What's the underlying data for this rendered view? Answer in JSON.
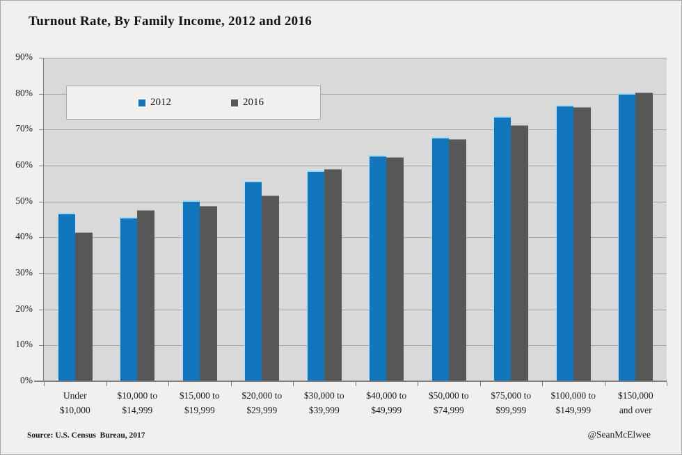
{
  "footer": {
    "source": "Source: U.S. Census  Bureau, 2017",
    "credit": "@SeanMcElwee"
  },
  "chart_data": {
    "type": "bar",
    "title": "Turnout Rate, By Family Income, 2012 and 2016",
    "categories": [
      "Under $10,000",
      "$10,000 to $14,999",
      "$15,000 to $19,999",
      "$20,000 to $29,999",
      "$30,000 to $39,999",
      "$40,000 to $49,999",
      "$50,000 to $74,999",
      "$75,000 to $99,999",
      "$100,000 to $149,999",
      "$150,000 and over"
    ],
    "category_lines": [
      [
        "Under",
        "$10,000"
      ],
      [
        "$10,000 to",
        "$14,999"
      ],
      [
        "$15,000 to",
        "$19,999"
      ],
      [
        "$20,000 to",
        "$29,999"
      ],
      [
        "$30,000 to",
        "$39,999"
      ],
      [
        "$40,000 to",
        "$49,999"
      ],
      [
        "$50,000 to",
        "$74,999"
      ],
      [
        "$75,000 to",
        "$99,999"
      ],
      [
        "$100,000 to",
        "$149,999"
      ],
      [
        "$150,000",
        "and over"
      ]
    ],
    "series": [
      {
        "name": "2012",
        "color": "#1276bd",
        "values": [
          46.9,
          45.7,
          50.3,
          55.7,
          58.6,
          63.0,
          67.9,
          73.7,
          76.9,
          80.2
        ]
      },
      {
        "name": "2016",
        "color": "#575756",
        "values": [
          41.4,
          47.7,
          48.7,
          51.7,
          59.0,
          62.4,
          67.4,
          71.2,
          76.3,
          80.3
        ]
      }
    ],
    "xlabel": "",
    "ylabel": "",
    "ylim": [
      0,
      90
    ],
    "yticks": [
      "0%",
      "10%",
      "20%",
      "30%",
      "40%",
      "50%",
      "60%",
      "70%",
      "80%",
      "90%"
    ],
    "grid": true,
    "legend_position": "top-left-inside",
    "plot_bg": "#d9d9d9",
    "grid_color": "#a3a3a3",
    "axis_color": "#7d7d7d"
  }
}
